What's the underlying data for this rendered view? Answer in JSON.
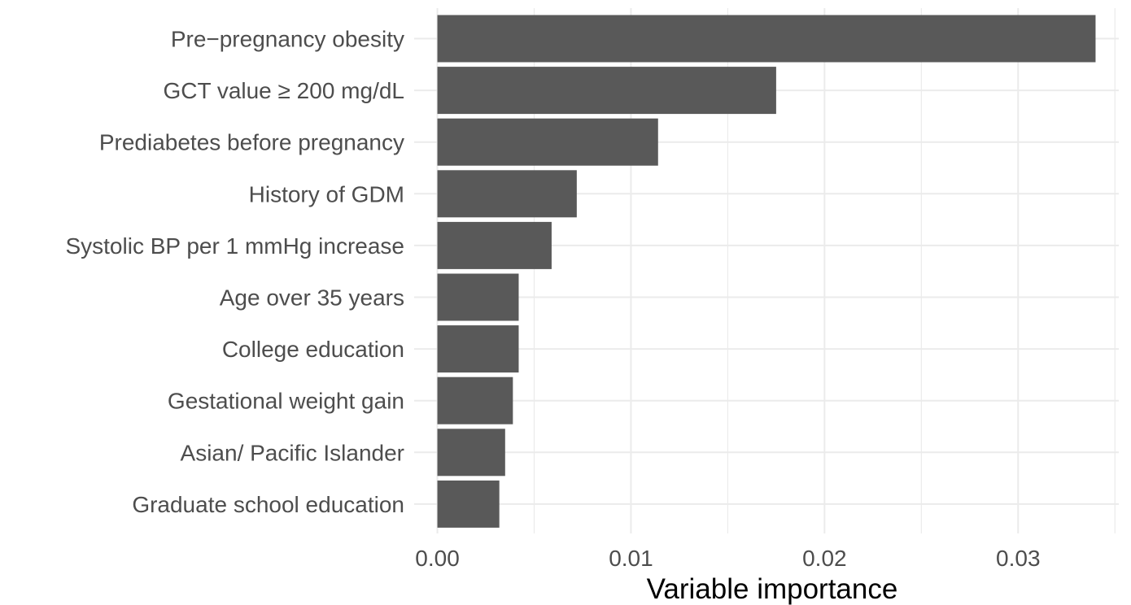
{
  "chart_data": {
    "type": "bar",
    "orientation": "horizontal",
    "categories": [
      "Pre−pregnancy obesity",
      "GCT value ≥ 200 mg/dL",
      "Prediabetes before pregnancy",
      "History of GDM",
      "Systolic BP per 1 mmHg increase",
      "Age over 35 years",
      "College education",
      "Gestational weight gain",
      "Asian/ Pacific Islander",
      "Graduate school education"
    ],
    "values": [
      0.034,
      0.0175,
      0.0114,
      0.0072,
      0.0059,
      0.0042,
      0.0042,
      0.0039,
      0.0035,
      0.0032
    ],
    "xlabel": "Variable importance",
    "ylabel": "",
    "xlim": [
      -0.0012,
      0.0352
    ],
    "x_ticks": [
      0.0,
      0.01,
      0.02,
      0.03
    ],
    "x_tick_labels": [
      "0.00",
      "0.01",
      "0.02",
      "0.03"
    ],
    "grid": true,
    "legend": "none",
    "bar_color": "#595959",
    "grid_color": "#ebebeb"
  }
}
